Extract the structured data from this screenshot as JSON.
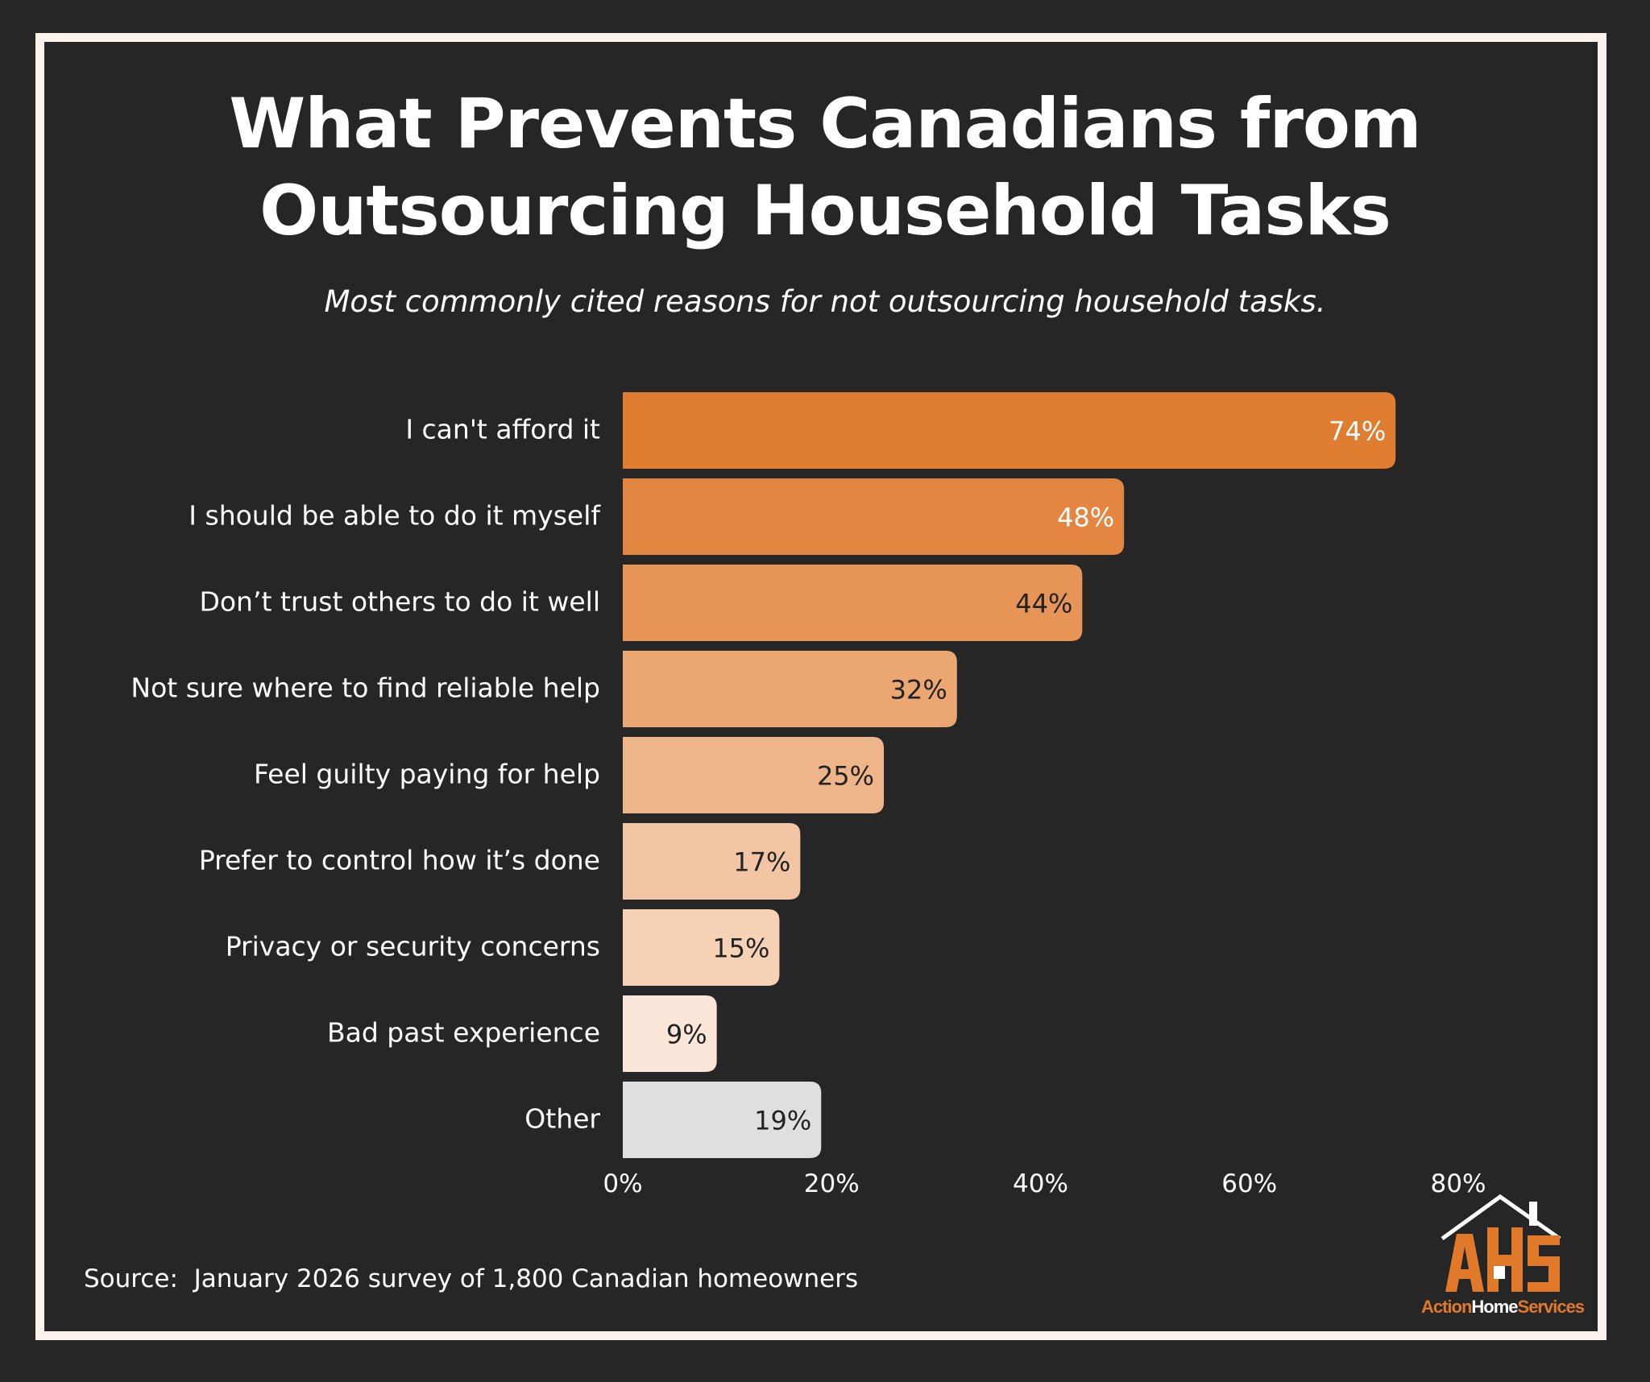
{
  "header": {
    "title_line1": "What Prevents Canadians from",
    "title_line2": "Outsourcing Household Tasks",
    "subtitle": "Most commonly cited reasons for not outsourcing household tasks."
  },
  "chart_data": {
    "type": "bar",
    "orientation": "horizontal",
    "title": "What Prevents Canadians from Outsourcing Household Tasks",
    "subtitle": "Most commonly cited reasons for not outsourcing household tasks.",
    "categories": [
      "I can't afford it",
      "I should be able to do it myself",
      "Don’t trust others to do it well",
      "Not sure where to find reliable help",
      "Feel guilty paying for help",
      "Prefer to control how it’s done",
      "Privacy or security concerns",
      "Bad past experience",
      "Other"
    ],
    "values": [
      74,
      48,
      44,
      32,
      25,
      17,
      15,
      9,
      19
    ],
    "value_labels": [
      "74%",
      "48%",
      "44%",
      "32%",
      "25%",
      "17%",
      "15%",
      "9%",
      "19%"
    ],
    "bar_colors": [
      "#df7d31",
      "#e28641",
      "#e79457",
      "#eba771",
      "#eeb58b",
      "#f2c5a5",
      "#f5d1b6",
      "#fbe6d9",
      "#dfdfdf"
    ],
    "label_colors": [
      "#ffffff",
      "#ffffff",
      "#222222",
      "#222222",
      "#222222",
      "#222222",
      "#222222",
      "#222222",
      "#222222"
    ],
    "xlim": [
      0,
      80
    ],
    "xticks": [
      0,
      20,
      40,
      60,
      80
    ],
    "xtick_labels": [
      "0%",
      "20%",
      "40%",
      "60%",
      "80%"
    ],
    "grid": false,
    "xlabel": "",
    "ylabel": ""
  },
  "footer": {
    "source": "Source:  January 2026 survey of 1,800 Canadian homeowners"
  },
  "logo": {
    "letters": "AHS",
    "word1": "Action",
    "word2": "Home",
    "word3": "Services",
    "colors": {
      "orange": "#e07a2a",
      "white": "#ffffff"
    }
  },
  "colors": {
    "background": "#262626",
    "frame": "#fcf4ec",
    "text": "#ffffff"
  }
}
